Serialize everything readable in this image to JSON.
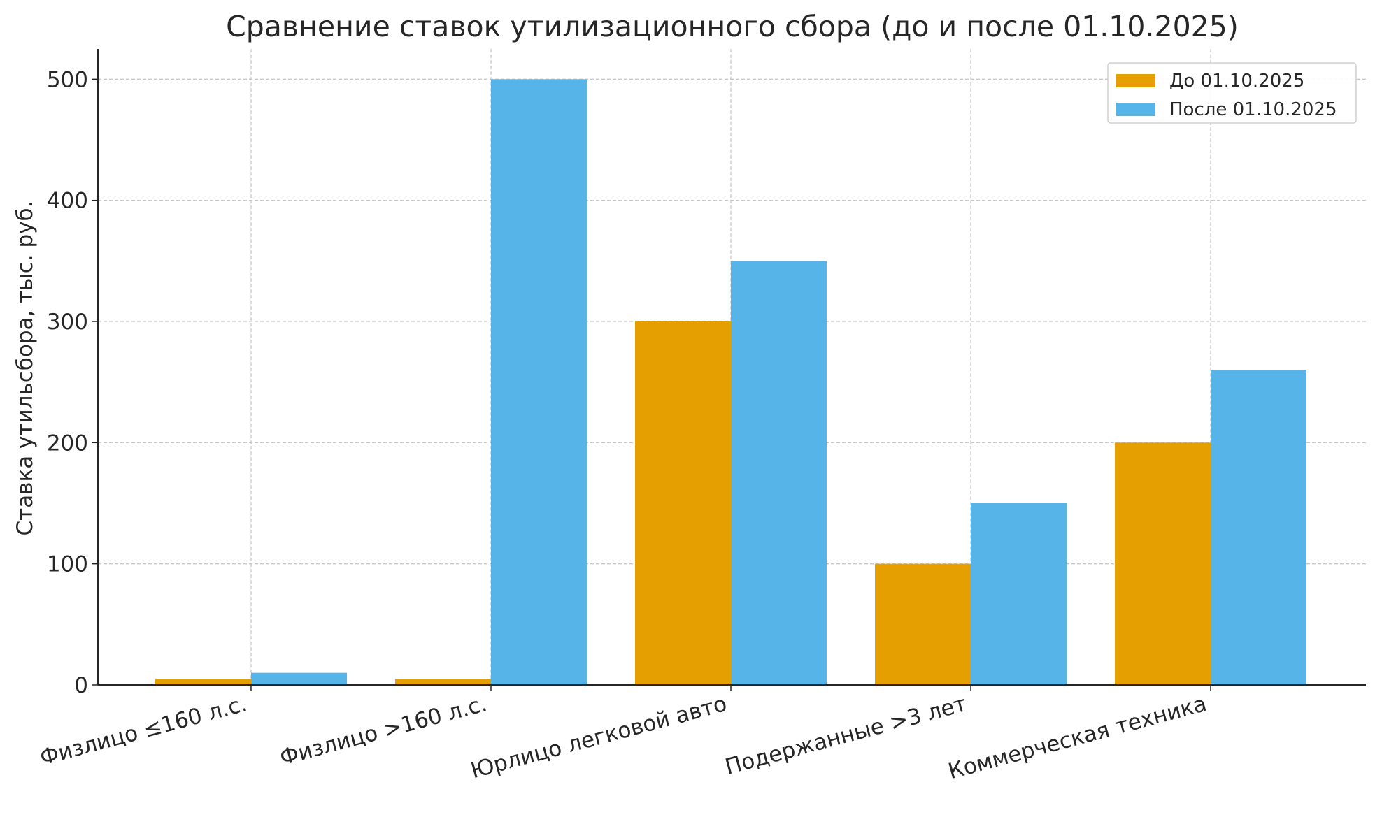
{
  "chart_data": {
    "type": "bar",
    "title": "Сравнение ставок утилизационного сбора (до и после 01.10.2025)",
    "xlabel": "",
    "ylabel": "Ставка утильсбора, тыс. руб.",
    "categories": [
      "Физлицо ≤160 л.с.",
      "Физлицо >160 л.с.",
      "Юрлицо легковой авто",
      "Подержанные >3 лет",
      "Коммерческая техника"
    ],
    "series": [
      {
        "name": "До 01.10.2025",
        "values": [
          5,
          5,
          300,
          100,
          200
        ],
        "color": "#E69F00"
      },
      {
        "name": "После 01.10.2025",
        "values": [
          10,
          500,
          350,
          150,
          260
        ],
        "color": "#56B4E9"
      }
    ],
    "ylim": [
      0,
      525
    ],
    "yticks": [
      0,
      100,
      200,
      300,
      400,
      500
    ],
    "grid": true,
    "legend_position": "top-right"
  }
}
